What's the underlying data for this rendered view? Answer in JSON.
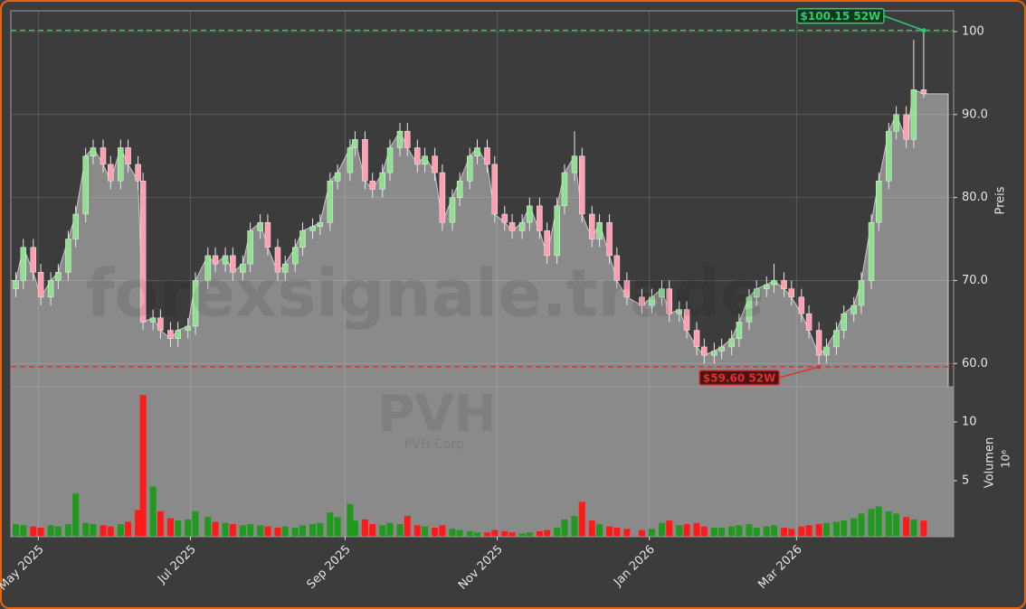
{
  "chart_data": {
    "type": "candlestick",
    "watermark": "forexsignale.trade",
    "ticker": "PVH",
    "company": "PVH Corp",
    "ylabel": "Preis",
    "volume_ylabel": "Volumen",
    "volume_unit": "10⁶",
    "up_color": "#1f9a1f",
    "down_color": "#ff1a1a",
    "area_color": "#8a8a8a",
    "grid": true,
    "xlim": [
      "2025-04-20",
      "2026-05-03"
    ],
    "xticks": [
      {
        "value": "2025-05-01",
        "label": "May 2025"
      },
      {
        "value": "2025-07-01",
        "label": "Jul 2025"
      },
      {
        "value": "2025-09-01",
        "label": "Sep 2025"
      },
      {
        "value": "2025-11-01",
        "label": "Nov 2025"
      },
      {
        "value": "2026-01-01",
        "label": "Jan 2026"
      },
      {
        "value": "2026-03-01",
        "label": "Mar 2026"
      }
    ],
    "ylim": [
      57.2,
      102.5
    ],
    "yticks": [
      {
        "value": 60,
        "label": "60.0"
      },
      {
        "value": 70,
        "label": "70.0"
      },
      {
        "value": 80,
        "label": "80.0"
      },
      {
        "value": 90,
        "label": "90.0"
      },
      100
    ],
    "volume_ylim": [
      0.23,
      13
    ],
    "volume_yticks": [
      5,
      10
    ],
    "annotations": [
      {
        "text": "$100.15 52W",
        "value": 100.15,
        "date": "2026-04-21",
        "color": "#2ecc71"
      },
      {
        "text": "$59.60 52W",
        "value": 59.6,
        "date": "2026-03-10",
        "color": "#e03030"
      }
    ],
    "dates": [
      "2025-04-22",
      "2025-04-25",
      "2025-04-29",
      "2025-05-02",
      "2025-05-06",
      "2025-05-09",
      "2025-05-13",
      "2025-05-16",
      "2025-05-20",
      "2025-05-23",
      "2025-05-27",
      "2025-05-30",
      "2025-06-03",
      "2025-06-06",
      "2025-06-10",
      "2025-06-12",
      "2025-06-16",
      "2025-06-19",
      "2025-06-23",
      "2025-06-26",
      "2025-06-30",
      "2025-07-03",
      "2025-07-08",
      "2025-07-11",
      "2025-07-15",
      "2025-07-18",
      "2025-07-22",
      "2025-07-25",
      "2025-07-29",
      "2025-08-01",
      "2025-08-05",
      "2025-08-08",
      "2025-08-12",
      "2025-08-15",
      "2025-08-19",
      "2025-08-22",
      "2025-08-26",
      "2025-08-29",
      "2025-09-03",
      "2025-09-05",
      "2025-09-09",
      "2025-09-12",
      "2025-09-16",
      "2025-09-19",
      "2025-09-23",
      "2025-09-26",
      "2025-09-30",
      "2025-10-03",
      "2025-10-07",
      "2025-10-10",
      "2025-10-14",
      "2025-10-17",
      "2025-10-21",
      "2025-10-24",
      "2025-10-28",
      "2025-10-31",
      "2025-11-04",
      "2025-11-07",
      "2025-11-11",
      "2025-11-14",
      "2025-11-18",
      "2025-11-21",
      "2025-11-25",
      "2025-11-28",
      "2025-12-02",
      "2025-12-05",
      "2025-12-09",
      "2025-12-12",
      "2025-12-16",
      "2025-12-19",
      "2025-12-23",
      "2025-12-29",
      "2026-01-02",
      "2026-01-06",
      "2026-01-09",
      "2026-01-13",
      "2026-01-16",
      "2026-01-20",
      "2026-01-23",
      "2026-01-27",
      "2026-01-30",
      "2026-02-03",
      "2026-02-06",
      "2026-02-10",
      "2026-02-13",
      "2026-02-17",
      "2026-02-20",
      "2026-02-24",
      "2026-02-27",
      "2026-03-03",
      "2026-03-06",
      "2026-03-10",
      "2026-03-13",
      "2026-03-17",
      "2026-03-20",
      "2026-03-24",
      "2026-03-27",
      "2026-03-31",
      "2026-04-03",
      "2026-04-07",
      "2026-04-10",
      "2026-04-14",
      "2026-04-17",
      "2026-04-21"
    ],
    "open": [
      69,
      70,
      74,
      71,
      68,
      70,
      71,
      75,
      78,
      85,
      86,
      84,
      82,
      86,
      84,
      82,
      65,
      65.5,
      64,
      63,
      64,
      64.5,
      70,
      73,
      72,
      73,
      71,
      72,
      76,
      77,
      74,
      71,
      72,
      74,
      76,
      76.5,
      77,
      82,
      83,
      86,
      87,
      82,
      81,
      83,
      86,
      88,
      86,
      84,
      85,
      83,
      77,
      80,
      82,
      85,
      86,
      84,
      78,
      77,
      76,
      77,
      79,
      76,
      73,
      79,
      83,
      85,
      78,
      75,
      77,
      73,
      70,
      68,
      67,
      68,
      69,
      66,
      66.5,
      64,
      62,
      61,
      61.5,
      62,
      63,
      65,
      68,
      69,
      69.5,
      70,
      69,
      68,
      66,
      64,
      61,
      62,
      64,
      66,
      67,
      70,
      77,
      82,
      88,
      90,
      87,
      93
    ],
    "high": [
      71,
      75,
      75,
      72,
      71,
      72,
      76,
      79,
      86,
      87,
      87,
      85,
      87,
      87,
      85,
      83,
      66.5,
      66.5,
      65,
      65,
      65.5,
      71,
      74,
      74,
      74,
      74,
      73,
      77,
      78,
      78,
      75,
      73,
      75,
      77,
      77.5,
      78,
      83,
      84,
      87,
      88,
      88,
      83,
      84,
      87,
      89,
      89,
      87,
      86,
      86,
      84,
      81,
      83,
      86,
      87,
      87,
      85,
      79,
      78,
      78,
      80,
      80,
      77,
      80,
      84,
      88,
      86,
      79,
      78,
      78,
      74,
      71,
      69,
      69,
      70,
      70,
      67.5,
      67.5,
      65,
      63,
      62.5,
      63,
      64,
      66,
      69,
      70,
      70.5,
      72,
      71,
      70,
      69,
      67,
      65,
      63,
      65,
      67,
      68,
      71,
      78,
      83,
      89,
      91,
      91,
      99,
      100.15
    ],
    "low": [
      68,
      69,
      70,
      67,
      67,
      69,
      70,
      74,
      77,
      84,
      83,
      81,
      81,
      83,
      81,
      64,
      64,
      63,
      62,
      62,
      63,
      63.5,
      69,
      71,
      71,
      70,
      70,
      71,
      75,
      73,
      70,
      70,
      71,
      73,
      75,
      75.5,
      76,
      81,
      82,
      85,
      81,
      80,
      80,
      82,
      85,
      85,
      83,
      83,
      82,
      76,
      76,
      79,
      81,
      84,
      83,
      77,
      76,
      75,
      75,
      76,
      75,
      72,
      72,
      78,
      82,
      77,
      74,
      74,
      72,
      69,
      67,
      66,
      66,
      67,
      65,
      65,
      63,
      61,
      60,
      60,
      60.5,
      61,
      62,
      64,
      67,
      68,
      68.5,
      68,
      67,
      65,
      63,
      59.6,
      60,
      61,
      63,
      65,
      66,
      69,
      76,
      81,
      87,
      86,
      86,
      92
    ],
    "close": [
      70,
      74,
      71,
      68,
      70,
      71,
      75,
      78,
      85,
      86,
      84,
      82,
      86,
      84,
      82,
      65,
      65.5,
      64,
      63,
      64,
      64.5,
      70,
      73,
      72,
      73,
      71,
      72,
      76,
      77,
      74,
      71,
      72,
      74,
      76,
      76.5,
      77,
      82,
      83,
      86,
      87,
      82,
      81,
      83,
      86,
      88,
      86,
      84,
      85,
      83,
      77,
      80,
      82,
      85,
      86,
      84,
      78,
      77,
      76,
      77,
      79,
      76,
      73,
      79,
      83,
      85,
      78,
      75,
      77,
      73,
      70,
      68,
      67,
      68,
      69,
      66,
      66.5,
      64,
      62,
      61,
      61.5,
      62,
      63,
      65,
      68,
      69,
      69.5,
      70,
      69,
      68,
      66,
      64,
      61,
      62,
      64,
      66,
      67,
      70,
      77,
      82,
      88,
      90,
      87,
      93,
      92.5
    ],
    "volume": [
      1.3,
      1.2,
      1.1,
      1.0,
      1.2,
      1.1,
      1.3,
      3.9,
      1.4,
      1.3,
      1.2,
      1.1,
      1.3,
      1.5,
      2.5,
      12.3,
      4.5,
      2.4,
      1.8,
      1.6,
      1.7,
      2.4,
      1.9,
      1.5,
      1.4,
      1.3,
      1.2,
      1.3,
      1.2,
      1.1,
      1.0,
      1.1,
      1.0,
      1.2,
      1.3,
      1.4,
      2.3,
      1.9,
      3.0,
      1.6,
      1.7,
      1.3,
      1.2,
      1.4,
      1.3,
      2.0,
      1.2,
      1.1,
      1.0,
      1.2,
      0.9,
      0.8,
      0.7,
      0.6,
      0.6,
      0.8,
      0.7,
      0.6,
      0.5,
      0.6,
      0.7,
      0.8,
      1.0,
      1.7,
      2.0,
      3.2,
      1.6,
      1.3,
      1.1,
      1.0,
      0.9,
      0.8,
      0.9,
      1.4,
      1.6,
      1.2,
      1.3,
      1.4,
      1.1,
      1.0,
      1.0,
      1.1,
      1.2,
      1.3,
      1.0,
      1.1,
      1.2,
      1.0,
      0.9,
      1.1,
      1.2,
      1.3,
      1.4,
      1.5,
      1.6,
      1.8,
      2.2,
      2.6,
      2.8,
      2.4,
      2.2,
      1.9,
      1.7,
      1.6
    ]
  }
}
